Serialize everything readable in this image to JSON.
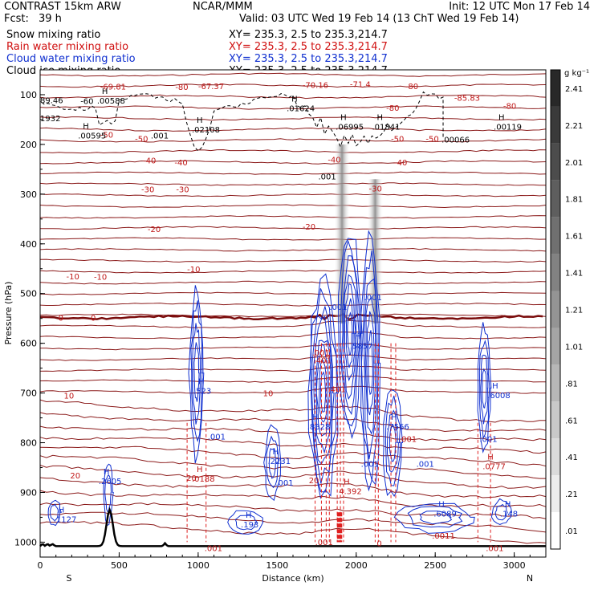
{
  "header": {
    "model": "CONTRAST 15km ARW",
    "org": "NCAR/MMM",
    "init": "Init: 12 UTC Mon 17 Feb 14",
    "fcst_label": "Fcst:",
    "fcst_value": "39 h",
    "valid": "Valid: 03 UTC Wed 19 Feb 14 (13 ChT Wed 19 Feb 14)"
  },
  "fields": [
    {
      "name": "Snow mixing ratio",
      "xy": "XY= 235.3,  2.5 to 235.3,214.7",
      "color": "#000000"
    },
    {
      "name": "Rain water mixing ratio",
      "xy": "XY= 235.3,  2.5 to 235.3,214.7",
      "color": "#d01010"
    },
    {
      "name": "Cloud water mixing ratio",
      "xy": "XY= 235.3,  2.5 to 235.3,214.7",
      "color": "#1030d0"
    },
    {
      "name": "Cloud ice mixing ratio",
      "xy": "XY= 235.3,  2.5 to 235.3,214.7",
      "color": "#000000"
    }
  ],
  "colorbar": {
    "unit": "g kg⁻¹",
    "ticks": [
      "2.41",
      "2.21",
      "2.01",
      "1.81",
      "1.61",
      "1.41",
      "1.21",
      "1.01",
      ".81",
      ".61",
      ".41",
      ".21",
      ".01"
    ]
  },
  "chart_data": {
    "type": "cross-section",
    "xlabel": "Distance (km)",
    "ylabel": "Pressure (hPa)",
    "xlim": [
      0,
      3200
    ],
    "ylim": [
      1030,
      50
    ],
    "x_ticks": [
      0,
      500,
      1000,
      1500,
      2000,
      2500,
      3000
    ],
    "y_ticks": [
      100,
      200,
      300,
      400,
      500,
      600,
      700,
      800,
      900,
      1000
    ],
    "x_end_labels": [
      "S",
      "N"
    ],
    "temperature_contours": [
      {
        "label": "-80",
        "p": 75
      },
      {
        "label": "-70",
        "p": 95
      },
      {
        "label": "-60",
        "p": 128
      },
      {
        "label": "-50",
        "p": 185
      },
      {
        "label": "-40",
        "p": 235
      },
      {
        "label": "-30",
        "p": 290
      },
      {
        "label": "-20",
        "p": 370
      },
      {
        "label": "-10",
        "p": 465
      },
      {
        "label": "0",
        "p": 548
      },
      {
        "label": "10",
        "p": 705
      },
      {
        "label": "20",
        "p": 865
      }
    ],
    "contour_labels": [
      {
        "text": "-69.81",
        "x": 380,
        "p": 83,
        "c": "red"
      },
      {
        "text": "-80",
        "x": 855,
        "p": 84,
        "c": "red"
      },
      {
        "text": "-67.37",
        "x": 1000,
        "p": 82,
        "c": "red"
      },
      {
        "text": "-70.16",
        "x": 1660,
        "p": 80,
        "c": "red"
      },
      {
        "text": "-71.4",
        "x": 1960,
        "p": 78,
        "c": "red"
      },
      {
        "text": "-80",
        "x": 2310,
        "p": 82,
        "c": "red"
      },
      {
        "text": "-85.83",
        "x": 2620,
        "p": 106,
        "c": "red"
      },
      {
        "text": "-80",
        "x": 2190,
        "p": 126,
        "c": "red"
      },
      {
        "text": "-80",
        "x": 2930,
        "p": 122,
        "c": "red"
      },
      {
        "text": "-50",
        "x": 380,
        "p": 180,
        "c": "red"
      },
      {
        "text": "-50",
        "x": 600,
        "p": 188,
        "c": "red"
      },
      {
        "text": "-50",
        "x": 2220,
        "p": 188,
        "c": "red"
      },
      {
        "text": "-50",
        "x": 2440,
        "p": 188,
        "c": "red"
      },
      {
        "text": "-40",
        "x": 650,
        "p": 232,
        "c": "red"
      },
      {
        "text": "-40",
        "x": 850,
        "p": 236,
        "c": "red"
      },
      {
        "text": "-40",
        "x": 1820,
        "p": 230,
        "c": "red"
      },
      {
        "text": "-40",
        "x": 2240,
        "p": 236,
        "c": "red"
      },
      {
        "text": "-30",
        "x": 640,
        "p": 290,
        "c": "red"
      },
      {
        "text": "-30",
        "x": 860,
        "p": 290,
        "c": "red"
      },
      {
        "text": "-30",
        "x": 2080,
        "p": 288,
        "c": "red"
      },
      {
        "text": "-20",
        "x": 680,
        "p": 370,
        "c": "red"
      },
      {
        "text": "-20",
        "x": 1660,
        "p": 365,
        "c": "red"
      },
      {
        "text": "-10",
        "x": 165,
        "p": 465,
        "c": "red"
      },
      {
        "text": "-10",
        "x": 340,
        "p": 466,
        "c": "red"
      },
      {
        "text": "-10",
        "x": 930,
        "p": 450,
        "c": "red"
      },
      {
        "text": "0",
        "x": 115,
        "p": 548,
        "c": "red"
      },
      {
        "text": "0",
        "x": 320,
        "p": 548,
        "c": "red"
      },
      {
        "text": "10",
        "x": 150,
        "p": 705,
        "c": "red"
      },
      {
        "text": "10",
        "x": 1410,
        "p": 700,
        "c": "red"
      },
      {
        "text": "20",
        "x": 190,
        "p": 865,
        "c": "red"
      },
      {
        "text": "20",
        "x": 925,
        "p": 870,
        "c": "red"
      },
      {
        "text": "20",
        "x": 1700,
        "p": 875,
        "c": "red"
      },
      {
        "text": "-60",
        "x": 255,
        "p": 112,
        "c": "black"
      }
    ],
    "max_min_labels": [
      {
        "mark": "H",
        "value": ".00588",
        "x": 360,
        "p": 110,
        "c": "black"
      },
      {
        "mark": "H",
        "value": ".02108",
        "x": 960,
        "p": 168,
        "c": "black"
      },
      {
        "mark": "H",
        "value": ".01624",
        "x": 1560,
        "p": 125,
        "c": "black"
      },
      {
        "mark": "H",
        "value": ".06995",
        "x": 1870,
        "p": 162,
        "c": "black"
      },
      {
        "mark": "H",
        "value": ".01841",
        "x": 2100,
        "p": 162,
        "c": "black"
      },
      {
        "mark": "H",
        "value": ".00119",
        "x": 2870,
        "p": 162,
        "c": "black"
      },
      {
        "mark": "H",
        "value": ".00595",
        "x": 240,
        "p": 180,
        "c": "black"
      },
      {
        "mark": "",
        "value": ".00066",
        "x": 2540,
        "p": 188,
        "c": "black"
      },
      {
        "mark": "",
        "value": ".001",
        "x": 700,
        "p": 180,
        "c": "black"
      },
      {
        "mark": "",
        "value": ".001",
        "x": 1760,
        "p": 262,
        "c": "black"
      },
      {
        "mark": "",
        "value": "89.46",
        "x": 0,
        "p": 109,
        "c": "black"
      },
      {
        "mark": "",
        "value": "1932",
        "x": 0,
        "p": 145,
        "c": "black"
      },
      {
        "mark": "H",
        "value": ".523",
        "x": 970,
        "p": 693,
        "c": "blue"
      },
      {
        "mark": "H",
        "value": ".8328",
        "x": 1690,
        "p": 765,
        "c": "blue"
      },
      {
        "mark": "H",
        "value": ".5857",
        "x": 1960,
        "p": 603,
        "c": "blue"
      },
      {
        "mark": "H",
        "value": ".7566",
        "x": 2190,
        "p": 765,
        "c": "blue"
      },
      {
        "mark": "H",
        "value": ".6008",
        "x": 2830,
        "p": 702,
        "c": "blue"
      },
      {
        "mark": "H",
        "value": ".2231",
        "x": 1440,
        "p": 835,
        "c": "blue"
      },
      {
        "mark": "H",
        "value": ".2605",
        "x": 370,
        "p": 875,
        "c": "blue"
      },
      {
        "mark": "H",
        "value": ".1127",
        "x": 85,
        "p": 952,
        "c": "blue"
      },
      {
        "mark": "H",
        "value": ".193",
        "x": 1270,
        "p": 962,
        "c": "blue"
      },
      {
        "mark": "H",
        "value": ".6089",
        "x": 2490,
        "p": 940,
        "c": "blue"
      },
      {
        "mark": "H",
        "value": ".148",
        "x": 2910,
        "p": 940,
        "c": "blue"
      },
      {
        "mark": "",
        "value": ".001",
        "x": 1830,
        "p": 525,
        "c": "blue"
      },
      {
        "mark": "",
        "value": ".001",
        "x": 2050,
        "p": 505,
        "c": "blue"
      },
      {
        "mark": "",
        "value": ".001",
        "x": 1060,
        "p": 785,
        "c": "blue"
      },
      {
        "mark": "",
        "value": ".001",
        "x": 1490,
        "p": 878,
        "c": "blue"
      },
      {
        "mark": "",
        "value": ".001",
        "x": 2030,
        "p": 840,
        "c": "blue"
      },
      {
        "mark": "",
        "value": ".001",
        "x": 2380,
        "p": 840,
        "c": "blue"
      },
      {
        "mark": "",
        "value": ".001",
        "x": 2780,
        "p": 790,
        "c": "blue"
      },
      {
        "mark": "",
        "value": ".001",
        "x": 1720,
        "p": 617,
        "c": "red"
      },
      {
        "mark": "",
        "value": ".401",
        "x": 1730,
        "p": 632,
        "c": "red"
      },
      {
        "mark": "",
        "value": ".401",
        "x": 1820,
        "p": 690,
        "c": "red"
      },
      {
        "mark": "H",
        "value": ".0188",
        "x": 960,
        "p": 870,
        "c": "red"
      },
      {
        "mark": "H",
        "value": "4.392",
        "x": 1890,
        "p": 895,
        "c": "red"
      },
      {
        "mark": "H",
        "value": ".0777",
        "x": 2800,
        "p": 845,
        "c": "red"
      },
      {
        "mark": "",
        "value": ".001",
        "x": 2270,
        "p": 790,
        "c": "red"
      },
      {
        "mark": "",
        "value": ".001",
        "x": 1740,
        "p": 998,
        "c": "red"
      },
      {
        "mark": "",
        "value": ".001",
        "x": 1040,
        "p": 1010,
        "c": "red"
      },
      {
        "mark": "",
        "value": ".0011",
        "x": 2480,
        "p": 985,
        "c": "red"
      },
      {
        "mark": "",
        "value": ".001",
        "x": 2820,
        "p": 1010,
        "c": "red"
      },
      {
        "mark": "",
        "value": "0",
        "x": 2130,
        "p": 1000,
        "c": "red"
      }
    ],
    "terrain": {
      "base_p": 1008,
      "peak_x": 440,
      "peak_p": 935
    }
  }
}
